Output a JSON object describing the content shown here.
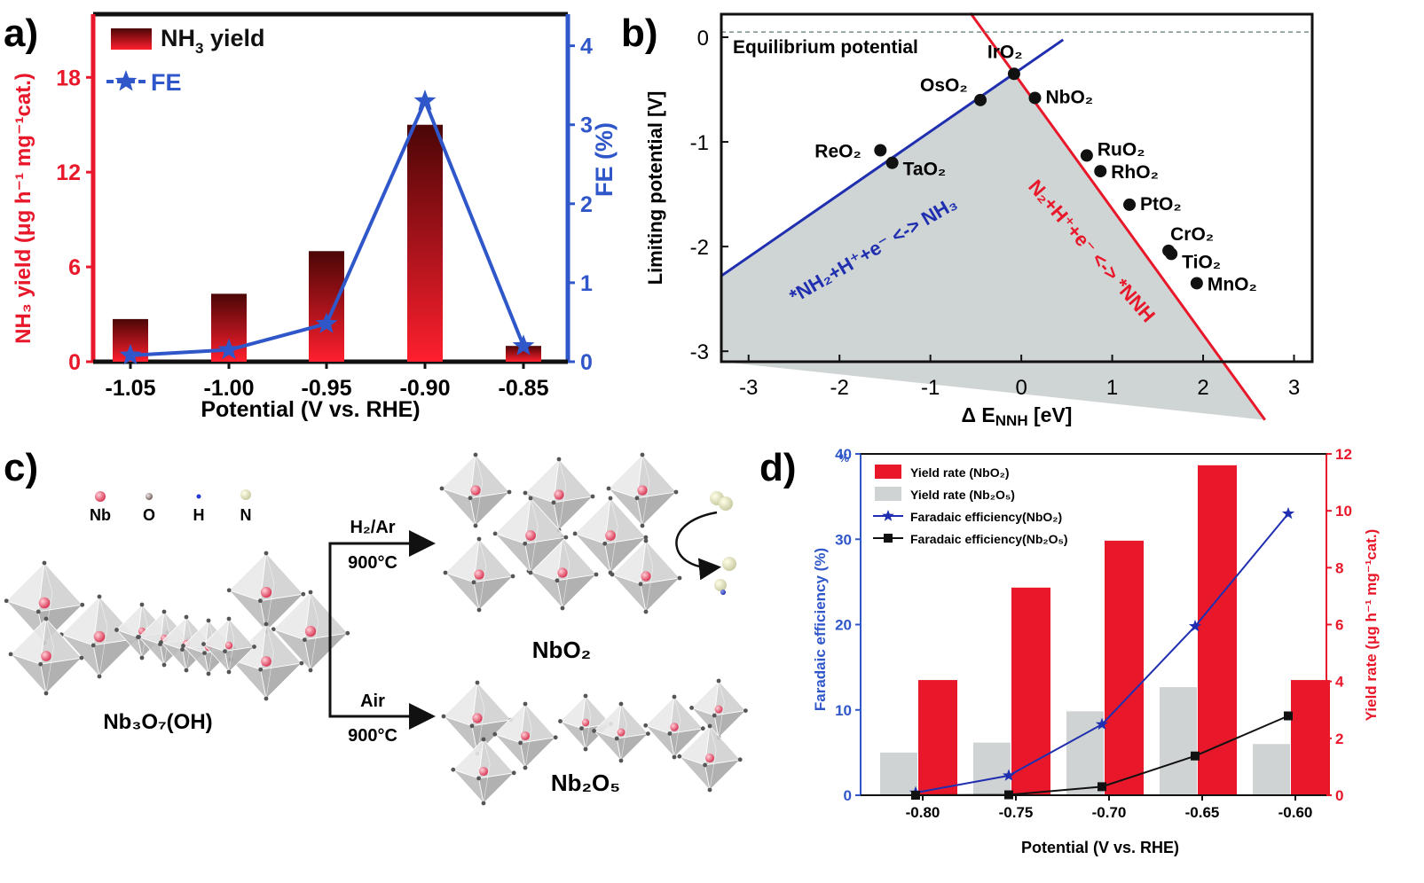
{
  "colors": {
    "red": "#e8182a",
    "blue": "#2f57c9",
    "navy": "#1f2fb0",
    "darkred": "#5a0a0a",
    "gray": "#cfd3d3",
    "pink": "#e3536b"
  },
  "panel_labels": {
    "a": "a)",
    "b": "b)",
    "c": "c)",
    "d": "d)"
  },
  "chart_data": [
    {
      "panel": "a",
      "type": "bar",
      "categories": [
        "-1.05",
        "-1.00",
        "-0.95",
        "-0.90",
        "-0.85"
      ],
      "series": [
        {
          "name": "NH3 yield",
          "legend_main": "NH",
          "legend_sub": "3",
          "legend_tail": " yield",
          "values": [
            2.7,
            4.3,
            7.0,
            15.0,
            1.0
          ],
          "axis": "left"
        },
        {
          "name": "FE",
          "legend_main": "FE",
          "values": [
            0.08,
            0.15,
            0.48,
            3.3,
            0.2
          ],
          "axis": "right"
        }
      ],
      "xlabel": "Potential (V vs. RHE)",
      "ylabel_left": "NH₃ yield (μg h⁻¹ mg⁻¹cat.)",
      "ylabel_right": "FE (%)",
      "yticks_left": [
        "0",
        "6",
        "12",
        "18"
      ],
      "yticks_right": [
        "0",
        "1",
        "2",
        "3",
        "4"
      ],
      "ylim_left": [
        0,
        22
      ],
      "ylim_right": [
        0,
        4.4
      ]
    },
    {
      "panel": "b",
      "type": "scatter",
      "xlabel": "Δ E",
      "xlabel_sub": "NNH",
      "xlabel_tail": " [eV]",
      "ylabel": "Limiting potential [V]",
      "xlim": [
        -3.3,
        3.2
      ],
      "ylim": [
        -3.1,
        0.22
      ],
      "xticks": [
        "-3",
        "-2",
        "-1",
        "0",
        "1",
        "2",
        "3"
      ],
      "yticks": [
        "0",
        "-1",
        "-2",
        "-3"
      ],
      "equilibrium_label": "Equilibrium potential",
      "equilibrium_y": 0.05,
      "line_blue_label": "*NH₂+H⁺+e⁻ <-> NH₃",
      "line_red_label": "N₂+H⁺+e⁻ <-> *NNH",
      "points": [
        {
          "label": "IrO₂",
          "x": -0.08,
          "y": -0.35
        },
        {
          "label": "OsO₂",
          "x": -0.45,
          "y": -0.6
        },
        {
          "label": "NbO₂",
          "x": 0.15,
          "y": -0.58
        },
        {
          "label": "ReO₂",
          "x": -1.55,
          "y": -1.08
        },
        {
          "label": "TaO₂",
          "x": -1.42,
          "y": -1.2
        },
        {
          "label": "RuO₂",
          "x": 0.72,
          "y": -1.13
        },
        {
          "label": "RhO₂",
          "x": 0.87,
          "y": -1.28
        },
        {
          "label": "PtO₂",
          "x": 1.19,
          "y": -1.6
        },
        {
          "label": "CrO₂",
          "x": 1.62,
          "y": -2.04
        },
        {
          "label": "TiO₂",
          "x": 1.65,
          "y": -2.07
        },
        {
          "label": "MnO₂",
          "x": 1.93,
          "y": -2.35
        }
      ]
    },
    {
      "panel": "d",
      "type": "bar",
      "categories": [
        "-0.80",
        "-0.75",
        "-0.70",
        "-0.65",
        "-0.60"
      ],
      "series": [
        {
          "name": "Yield rate (NbO2)",
          "legend": "Yield rate (NbO₂)",
          "values": [
            4.05,
            7.3,
            8.95,
            11.6,
            4.05
          ],
          "axis": "right"
        },
        {
          "name": "Yield rate (Nb2O5)",
          "legend": "Yield rate (Nb₂O₅)",
          "values": [
            1.5,
            1.85,
            2.95,
            3.8,
            1.8
          ],
          "axis": "right"
        },
        {
          "name": "Faradaic efficiency(NbO2)",
          "legend": "Faradaic efficiency(NbO₂)",
          "values": [
            0.3,
            2.3,
            8.3,
            19.8,
            33.0
          ],
          "axis": "left"
        },
        {
          "name": "Faradaic efficiency(Nb2O5)",
          "legend": "Faradaic efficiency(Nb₂O₅)",
          "values": [
            0.0,
            0.05,
            1.0,
            4.6,
            9.3
          ],
          "axis": "left"
        }
      ],
      "xlabel": "Potential (V vs. RHE)",
      "ylabel_left": "Faradaic efficiency (%)",
      "ylabel_right": "Yield rate (μg h⁻¹ mg⁻¹cat.)",
      "yticks_left": [
        "0",
        "10",
        "20",
        "30",
        "40"
      ],
      "yticks_right": [
        "0",
        "2",
        "4",
        "6",
        "8",
        "10",
        "12"
      ],
      "ylim_left": [
        0,
        40
      ],
      "ylim_right": [
        0,
        12
      ],
      "pct_mark": "%"
    }
  ],
  "panel_c": {
    "legend": [
      "Nb",
      "O",
      "H",
      "N"
    ],
    "start": "Nb₃O₇(OH)",
    "arrow_top_gas": "H₂/Ar",
    "arrow_top_temp": "900°C",
    "arrow_bottom_gas": "Air",
    "arrow_bottom_temp": "900°C",
    "product_top": "NbO₂",
    "product_bottom": "Nb₂O₅"
  }
}
